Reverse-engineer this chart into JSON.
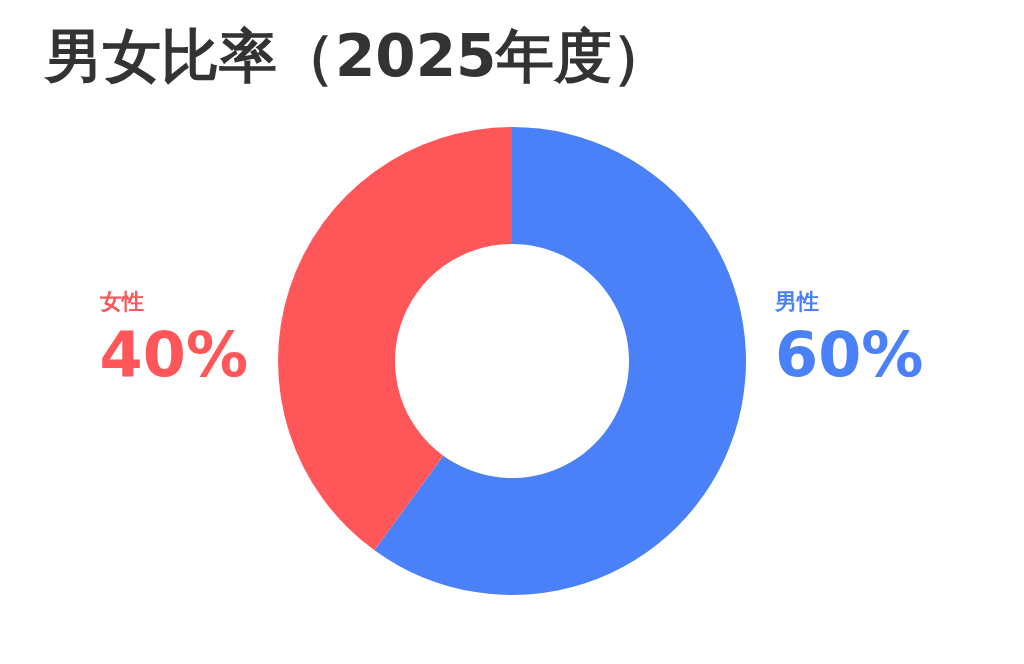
{
  "chart_data": {
    "type": "donut",
    "title": "男女比率（2025年度）",
    "categories": [
      "男性",
      "女性"
    ],
    "values": [
      60,
      40
    ],
    "colors": [
      "#4a80f8",
      "#fe5659"
    ],
    "value_labels": [
      "60%",
      "40%"
    ]
  }
}
